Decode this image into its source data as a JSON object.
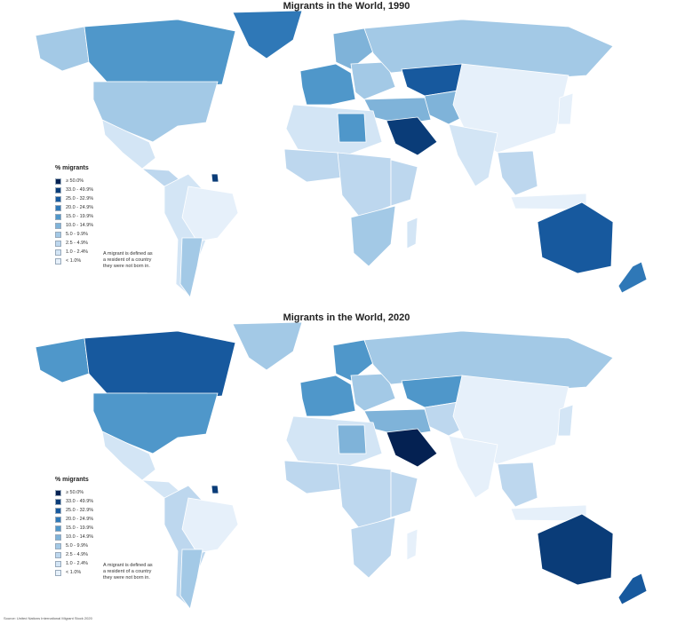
{
  "colors": {
    "c0": "#e6f0fa",
    "c1": "#d3e5f5",
    "c2": "#bdd7ee",
    "c3": "#a3c9e6",
    "c4": "#7fb3d9",
    "c5": "#4f97ca",
    "c6": "#2f78b7",
    "c7": "#17599e",
    "c8": "#0a3c78",
    "c9": "#042152",
    "nodata": "#c9a9a9",
    "border": "#ffffff"
  },
  "legend": {
    "title": "% migrants",
    "items": [
      {
        "label": "≥ 50.0%",
        "color": "#042152"
      },
      {
        "label": "33.0 - 49.9%",
        "color": "#0a3c78"
      },
      {
        "label": "25.0 - 32.9%",
        "color": "#17599e"
      },
      {
        "label": "20.0 - 24.9%",
        "color": "#2f78b7"
      },
      {
        "label": "15.0 - 19.9%",
        "color": "#4f97ca"
      },
      {
        "label": "10.0 - 14.9%",
        "color": "#7fb3d9"
      },
      {
        "label": "5.0 - 9.9%",
        "color": "#a3c9e6"
      },
      {
        "label": "2.5 - 4.9%",
        "color": "#bdd7ee"
      },
      {
        "label": "1.0 - 2.4%",
        "color": "#d3e5f5"
      },
      {
        "label": "< 1.0%",
        "color": "#e6f0fa"
      }
    ],
    "note": "A migrant is defined as a resident of a country they were not born in."
  },
  "maps": [
    {
      "title": "Migrants in the World, 1990",
      "regions": {
        "canada": "c5",
        "alaska": "c3",
        "usa": "c3",
        "greenland": "c6",
        "mexico": "c1",
        "central_america": "c2",
        "south_america": "c1",
        "argentina": "c3",
        "brazil": "c0",
        "western_europe": "c5",
        "scandinavia": "c4",
        "eastern_europe": "c3",
        "russia": "c3",
        "kazakhstan": "c7",
        "central_asia": "c4",
        "middle_east": "c4",
        "saudi": "c8",
        "north_africa": "c1",
        "libya": "c5",
        "west_africa": "c2",
        "central_africa": "c2",
        "east_africa": "c2",
        "southern_africa": "c3",
        "madagascar": "c1",
        "sudan": "nodata",
        "china": "c0",
        "india": "c1",
        "southeast_asia": "c2",
        "indonesia": "c0",
        "japan": "c0",
        "australia": "c7",
        "new_zealand": "c6",
        "french_guiana": "c8"
      }
    },
    {
      "title": "Migrants in the World, 2020",
      "regions": {
        "canada": "c7",
        "alaska": "c5",
        "usa": "c5",
        "greenland": "c3",
        "mexico": "c1",
        "central_america": "c1",
        "south_america": "c2",
        "argentina": "c3",
        "brazil": "c0",
        "western_europe": "c5",
        "scandinavia": "c5",
        "eastern_europe": "c3",
        "russia": "c3",
        "kazakhstan": "c5",
        "central_asia": "c2",
        "middle_east": "c4",
        "saudi": "c9",
        "north_africa": "c1",
        "libya": "c4",
        "west_africa": "c2",
        "central_africa": "c2",
        "east_africa": "c2",
        "southern_africa": "c2",
        "madagascar": "c0",
        "sudan": "c2",
        "china": "c0",
        "india": "c0",
        "southeast_asia": "c2",
        "indonesia": "c0",
        "japan": "c1",
        "australia": "c8",
        "new_zealand": "c7",
        "french_guiana": "c8"
      }
    }
  ],
  "source": "Source: United Nations International Migrant Stock 2020"
}
